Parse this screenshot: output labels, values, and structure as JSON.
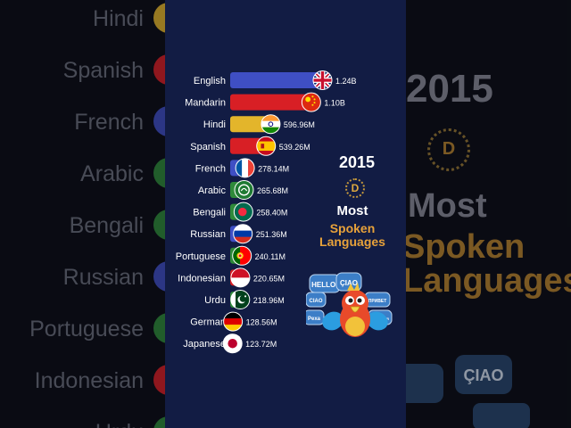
{
  "chart_data": {
    "type": "bar",
    "orientation": "horizontal",
    "year": "2015",
    "title_line1": "Most",
    "title_line2": "Spoken Languages",
    "logo_letter": "D",
    "categories": [
      "English",
      "Mandarin",
      "Hindi",
      "Spanish",
      "French",
      "Arabic",
      "Bengali",
      "Russian",
      "Portuguese",
      "Indonesian",
      "Urdu",
      "German",
      "Japanese"
    ],
    "values": [
      1240,
      1100,
      596.96,
      539.26,
      278.14,
      265.68,
      258.4,
      251.36,
      240.11,
      220.65,
      218.96,
      128.56,
      123.72
    ],
    "value_labels": [
      "1.24B",
      "1.10B",
      "596.96M",
      "539.26M",
      "278.14M",
      "265.68M",
      "258.40M",
      "251.36M",
      "240.11M",
      "220.65M",
      "218.96M",
      "128.56M",
      "123.72M"
    ],
    "unit": "millions of speakers",
    "bar_colors": [
      "#3f4fc4",
      "#d81f25",
      "#e3b52b",
      "#d81f25",
      "#3f4fc4",
      "#2f8a3a",
      "#2f8a3a",
      "#3f4fc4",
      "#2f8a3a",
      "#d81f25",
      "#2f8a3a",
      "#d81f25",
      "#eeeeee"
    ],
    "flags": [
      "uk",
      "china",
      "india",
      "spain",
      "france",
      "arabic",
      "bangladesh",
      "russia",
      "portugal",
      "indonesia",
      "pakistan",
      "germany",
      "japan"
    ]
  },
  "speech_bubbles": [
    "HELLO!",
    "ÇIAO",
    "CIAO",
    "Pexa",
    "ПРИВЕТ",
    "BONJOUR"
  ],
  "background": {
    "left_labels": [
      "Hindi",
      "Spanish",
      "French",
      "Arabic",
      "Bengali",
      "Russian",
      "Portuguese",
      "Indonesian",
      "Urdu"
    ],
    "left_dot_colors": [
      "#e3b52b",
      "#d81f25",
      "#3f4fc4",
      "#2f8a3a",
      "#2f8a3a",
      "#3f4fc4",
      "#2f8a3a",
      "#d81f25",
      "#2f8a3a"
    ],
    "year": "2015",
    "most": "Most",
    "spoken": "Spoken",
    "languages": "Languages",
    "logo_letter": "D"
  }
}
